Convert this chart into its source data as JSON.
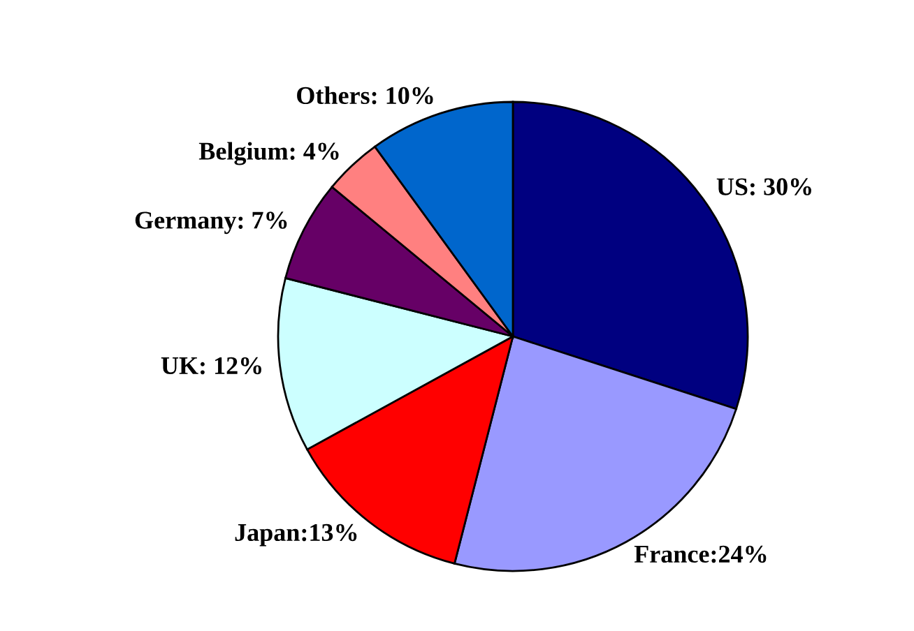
{
  "chart_data": {
    "type": "pie",
    "categories": [
      "US",
      "France",
      "Japan",
      "UK",
      "Germany",
      "Belgium",
      "Others"
    ],
    "values": [
      30,
      24,
      13,
      12,
      7,
      4,
      10
    ],
    "colors": [
      "#000080",
      "#9999ff",
      "#ff0000",
      "#ccffff",
      "#660066",
      "#ff8080",
      "#0066cc"
    ],
    "value_labels": [
      ": 30%",
      ":24%",
      ":13%",
      ": 12%",
      ": 7%",
      ": 4%",
      ": 10%"
    ],
    "legend": false
  }
}
